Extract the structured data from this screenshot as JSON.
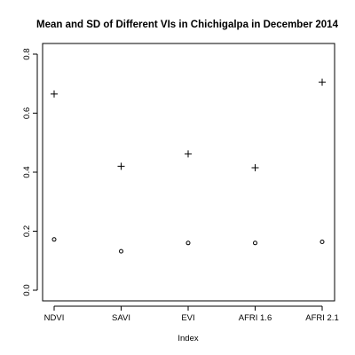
{
  "chart_data": {
    "type": "scatter",
    "title": "Mean and SD of Different VIs in Chichigalpa in December 2014",
    "xlabel": "Index",
    "ylabel": "",
    "categories": [
      "NDVI",
      "SAVI",
      "EVI",
      "AFRI 1.6",
      "AFRI 2.1"
    ],
    "ylim": [
      0,
      0.8
    ],
    "yticks": [
      "0.0",
      "0.2",
      "0.4",
      "0.6",
      "0.8"
    ],
    "grid": false,
    "series": [
      {
        "marker": "plus",
        "values": [
          0.665,
          0.42,
          0.462,
          0.415,
          0.705
        ]
      },
      {
        "marker": "circle",
        "values": [
          0.172,
          0.132,
          0.16,
          0.16,
          0.164
        ]
      }
    ]
  }
}
